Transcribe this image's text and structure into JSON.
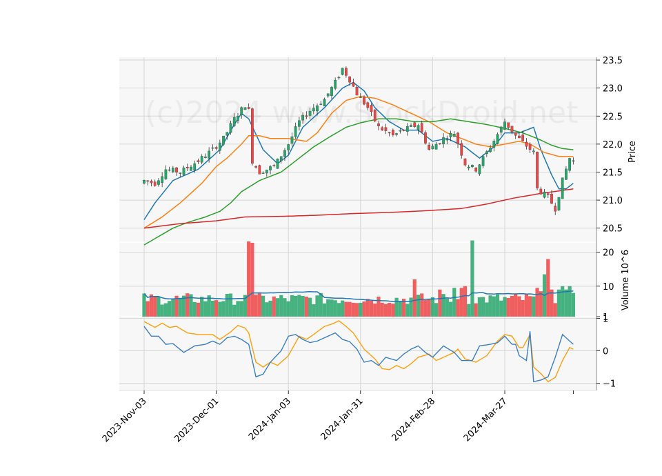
{
  "chart_data": {
    "type": "candlestick",
    "watermark": "(c)2024 www.StockDroid.net",
    "price_panel": {
      "ylabel": "Price",
      "ylim": [
        20.25,
        23.55
      ],
      "yticks": [
        "20.5",
        "21.0",
        "21.5",
        "22.0",
        "22.5",
        "23.0",
        "23.5"
      ],
      "ytick_values": [
        20.5,
        21.0,
        21.5,
        22.0,
        22.5,
        23.0,
        23.5
      ],
      "ma_colors": [
        "#1f77b4",
        "#ff7f0e",
        "#2ca02c",
        "#d62728"
      ],
      "up_color": "#26a66a",
      "down_color": "#ef4444"
    },
    "volume_panel": {
      "ylabel": "Volume  10^6",
      "ylim": [
        1,
        23
      ],
      "yticks": [
        "1",
        "10",
        "20"
      ],
      "ytick_values": [
        1,
        10,
        20
      ],
      "ma_color": "#1f77b4"
    },
    "oscillator_panel": {
      "ylim": [
        -1.22,
        1.05
      ],
      "yticks": [
        "1",
        "0",
        "−1"
      ],
      "ytick_values": [
        1,
        0,
        -1
      ],
      "line_colors": [
        "#ff9f0a",
        "#3a7fc1"
      ]
    },
    "xticks": [
      "2023-Nov-03",
      "2023-Dec-01",
      "2024-Jan-03",
      "2024-Jan-31",
      "2024-Feb-28",
      "2024-Mar-27"
    ],
    "xtick_index": [
      0,
      20,
      40,
      60,
      80,
      100
    ],
    "n_bars": 120,
    "anchors": {
      "close": [
        [
          0,
          21.35
        ],
        [
          3,
          21.3
        ],
        [
          6,
          21.55
        ],
        [
          10,
          21.5
        ],
        [
          15,
          21.7
        ],
        [
          19,
          21.9
        ],
        [
          22,
          22.1
        ],
        [
          25,
          22.45
        ],
        [
          28,
          22.7
        ],
        [
          29,
          22.6
        ],
        [
          30,
          21.7
        ],
        [
          32,
          21.5
        ],
        [
          36,
          21.6
        ],
        [
          40,
          22.0
        ],
        [
          43,
          22.4
        ],
        [
          46,
          22.6
        ],
        [
          50,
          22.8
        ],
        [
          53,
          23.1
        ],
        [
          55,
          23.35
        ],
        [
          57,
          23.15
        ],
        [
          59,
          22.9
        ],
        [
          62,
          22.65
        ],
        [
          65,
          22.3
        ],
        [
          69,
          22.15
        ],
        [
          72,
          22.25
        ],
        [
          76,
          22.35
        ],
        [
          79,
          21.9
        ],
        [
          83,
          22.1
        ],
        [
          86,
          22.2
        ],
        [
          89,
          21.65
        ],
        [
          92,
          21.55
        ],
        [
          96,
          21.95
        ],
        [
          100,
          22.4
        ],
        [
          103,
          22.15
        ],
        [
          108,
          21.85
        ],
        [
          109,
          21.2
        ],
        [
          112,
          21.05
        ],
        [
          114,
          20.85
        ],
        [
          116,
          21.35
        ],
        [
          118,
          21.75
        ],
        [
          119,
          21.7
        ]
      ],
      "ma1": [
        [
          0,
          20.65
        ],
        [
          3,
          20.95
        ],
        [
          8,
          21.35
        ],
        [
          15,
          21.55
        ],
        [
          21,
          21.9
        ],
        [
          25,
          22.35
        ],
        [
          27,
          22.55
        ],
        [
          29,
          22.45
        ],
        [
          33,
          21.9
        ],
        [
          37,
          21.65
        ],
        [
          40,
          21.8
        ],
        [
          44,
          22.3
        ],
        [
          50,
          22.65
        ],
        [
          55,
          23.0
        ],
        [
          58,
          23.1
        ],
        [
          61,
          22.95
        ],
        [
          64,
          22.65
        ],
        [
          68,
          22.4
        ],
        [
          72,
          22.25
        ],
        [
          76,
          22.25
        ],
        [
          80,
          22.05
        ],
        [
          84,
          22.1
        ],
        [
          89,
          21.95
        ],
        [
          93,
          21.75
        ],
        [
          97,
          21.95
        ],
        [
          100,
          22.2
        ],
        [
          104,
          22.2
        ],
        [
          108,
          22.3
        ],
        [
          110,
          21.9
        ],
        [
          113,
          21.45
        ],
        [
          115,
          21.2
        ],
        [
          117,
          21.2
        ],
        [
          119,
          21.3
        ]
      ],
      "ma2": [
        [
          0,
          20.5
        ],
        [
          5,
          20.7
        ],
        [
          10,
          20.95
        ],
        [
          16,
          21.3
        ],
        [
          20,
          21.6
        ],
        [
          23,
          21.75
        ],
        [
          27,
          22.0
        ],
        [
          29,
          22.15
        ],
        [
          32,
          22.15
        ],
        [
          35,
          22.1
        ],
        [
          40,
          22.1
        ],
        [
          45,
          22.05
        ],
        [
          48,
          22.2
        ],
        [
          52,
          22.55
        ],
        [
          56,
          22.78
        ],
        [
          60,
          22.85
        ],
        [
          64,
          22.82
        ],
        [
          69,
          22.7
        ],
        [
          74,
          22.55
        ],
        [
          79,
          22.4
        ],
        [
          84,
          22.2
        ],
        [
          88,
          22.1
        ],
        [
          92,
          22.0
        ],
        [
          96,
          21.95
        ],
        [
          100,
          22.0
        ],
        [
          104,
          22.05
        ],
        [
          107,
          22.0
        ],
        [
          111,
          21.85
        ],
        [
          115,
          21.78
        ],
        [
          119,
          21.78
        ]
      ],
      "ma3": [
        [
          0,
          20.2
        ],
        [
          4,
          20.35
        ],
        [
          8,
          20.5
        ],
        [
          12,
          20.6
        ],
        [
          17,
          20.7
        ],
        [
          21,
          20.8
        ],
        [
          24,
          20.95
        ],
        [
          27,
          21.15
        ],
        [
          32,
          21.35
        ],
        [
          38,
          21.5
        ],
        [
          42,
          21.7
        ],
        [
          47,
          21.95
        ],
        [
          52,
          22.15
        ],
        [
          56,
          22.3
        ],
        [
          60,
          22.38
        ],
        [
          65,
          22.45
        ],
        [
          70,
          22.45
        ],
        [
          75,
          22.4
        ],
        [
          80,
          22.4
        ],
        [
          85,
          22.45
        ],
        [
          90,
          22.4
        ],
        [
          95,
          22.35
        ],
        [
          100,
          22.28
        ],
        [
          105,
          22.2
        ],
        [
          109,
          22.1
        ],
        [
          113,
          21.98
        ],
        [
          116,
          21.92
        ],
        [
          119,
          21.9
        ]
      ],
      "ma4": [
        [
          0,
          20.5
        ],
        [
          10,
          20.58
        ],
        [
          20,
          20.63
        ],
        [
          28,
          20.7
        ],
        [
          38,
          20.71
        ],
        [
          48,
          20.73
        ],
        [
          58,
          20.76
        ],
        [
          68,
          20.78
        ],
        [
          78,
          20.81
        ],
        [
          88,
          20.85
        ],
        [
          95,
          20.93
        ],
        [
          102,
          21.03
        ],
        [
          110,
          21.12
        ],
        [
          119,
          21.2
        ]
      ],
      "osc_orange": [
        [
          0,
          0.9
        ],
        [
          3,
          0.72
        ],
        [
          5,
          0.85
        ],
        [
          7,
          0.72
        ],
        [
          9,
          0.75
        ],
        [
          12,
          0.55
        ],
        [
          15,
          0.5
        ],
        [
          19,
          0.5
        ],
        [
          21,
          0.35
        ],
        [
          24,
          0.58
        ],
        [
          26,
          0.78
        ],
        [
          28,
          0.7
        ],
        [
          29,
          0.55
        ],
        [
          31,
          -0.35
        ],
        [
          33,
          -0.5
        ],
        [
          35,
          -0.35
        ],
        [
          37,
          -0.45
        ],
        [
          40,
          -0.15
        ],
        [
          43,
          0.45
        ],
        [
          45,
          0.35
        ],
        [
          47,
          0.5
        ],
        [
          50,
          0.75
        ],
        [
          52,
          0.82
        ],
        [
          54,
          0.92
        ],
        [
          56,
          0.75
        ],
        [
          58,
          0.55
        ],
        [
          61,
          0.05
        ],
        [
          64,
          -0.25
        ],
        [
          66,
          -0.55
        ],
        [
          68,
          -0.58
        ],
        [
          70,
          -0.45
        ],
        [
          72,
          -0.55
        ],
        [
          74,
          -0.4
        ],
        [
          76,
          -0.2
        ],
        [
          79,
          -0.1
        ],
        [
          81,
          -0.3
        ],
        [
          83,
          -0.2
        ],
        [
          86,
          -0.05
        ],
        [
          87,
          0.05
        ],
        [
          89,
          -0.25
        ],
        [
          92,
          -0.35
        ],
        [
          95,
          -0.15
        ],
        [
          98,
          0.3
        ],
        [
          100,
          0.5
        ],
        [
          102,
          0.45
        ],
        [
          104,
          0.1
        ],
        [
          105,
          0.1
        ],
        [
          107,
          0.5
        ],
        [
          108,
          -0.5
        ],
        [
          110,
          -0.7
        ],
        [
          112,
          -0.95
        ],
        [
          114,
          -0.82
        ],
        [
          116,
          -0.3
        ],
        [
          118,
          0.1
        ],
        [
          119,
          0.05
        ]
      ],
      "osc_blue": [
        [
          0,
          0.75
        ],
        [
          2,
          0.45
        ],
        [
          4,
          0.45
        ],
        [
          6,
          0.2
        ],
        [
          8,
          0.22
        ],
        [
          11,
          -0.05
        ],
        [
          14,
          0.15
        ],
        [
          17,
          0.2
        ],
        [
          19,
          0.3
        ],
        [
          21,
          0.2
        ],
        [
          23,
          0.4
        ],
        [
          25,
          0.45
        ],
        [
          27,
          0.35
        ],
        [
          29,
          0.2
        ],
        [
          31,
          -0.8
        ],
        [
          33,
          -0.72
        ],
        [
          35,
          -0.35
        ],
        [
          38,
          0.0
        ],
        [
          40,
          0.45
        ],
        [
          42,
          0.5
        ],
        [
          44,
          0.35
        ],
        [
          46,
          0.25
        ],
        [
          48,
          0.3
        ],
        [
          51,
          0.45
        ],
        [
          53,
          0.55
        ],
        [
          55,
          0.35
        ],
        [
          57,
          0.28
        ],
        [
          59,
          0.05
        ],
        [
          61,
          -0.35
        ],
        [
          63,
          -0.3
        ],
        [
          65,
          -0.45
        ],
        [
          67,
          -0.2
        ],
        [
          70,
          -0.3
        ],
        [
          72,
          -0.1
        ],
        [
          74,
          0.05
        ],
        [
          76,
          0.15
        ],
        [
          78,
          -0.05
        ],
        [
          80,
          -0.2
        ],
        [
          83,
          0.15
        ],
        [
          86,
          -0.05
        ],
        [
          88,
          -0.3
        ],
        [
          91,
          -0.3
        ],
        [
          93,
          0.15
        ],
        [
          96,
          0.2
        ],
        [
          98,
          0.25
        ],
        [
          100,
          0.45
        ],
        [
          102,
          0.2
        ],
        [
          103,
          0.2
        ],
        [
          104,
          -0.15
        ],
        [
          106,
          -0.3
        ],
        [
          107,
          0.6
        ],
        [
          108,
          -0.95
        ],
        [
          110,
          -0.9
        ],
        [
          112,
          -0.8
        ],
        [
          114,
          -0.2
        ],
        [
          116,
          0.5
        ],
        [
          118,
          0.3
        ],
        [
          119,
          0.2
        ]
      ]
    },
    "volume_spikes": [
      [
        29,
        23.2
      ],
      [
        30,
        22.8
      ],
      [
        31,
        7.5
      ],
      [
        75,
        12
      ],
      [
        82,
        9
      ],
      [
        86,
        9.5
      ],
      [
        88,
        9.5
      ],
      [
        89,
        10
      ],
      [
        91,
        23.5
      ],
      [
        109,
        9.5
      ],
      [
        110,
        8.5
      ],
      [
        111,
        13.5
      ],
      [
        112,
        18
      ],
      [
        113,
        9
      ],
      [
        114,
        5
      ],
      [
        115,
        9
      ],
      [
        116,
        10
      ],
      [
        117,
        9
      ],
      [
        118,
        10
      ],
      [
        119,
        8
      ]
    ]
  }
}
